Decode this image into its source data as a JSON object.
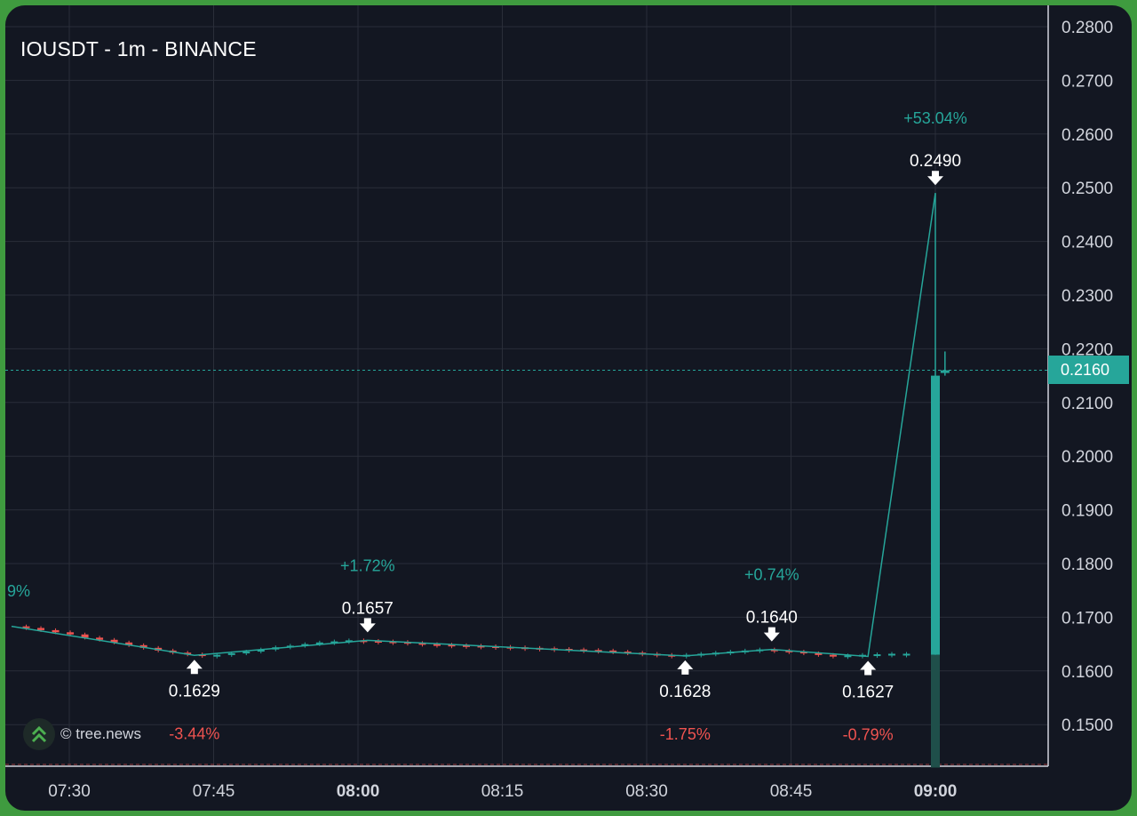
{
  "header": {
    "title": "IOUSDT - 1m - BINANCE"
  },
  "watermark": {
    "text": "© tree.news",
    "icon": "double-chevron-up-icon"
  },
  "last_price_label": "0.2160",
  "colors": {
    "up": "#26a69a",
    "down": "#ef5350",
    "background": "#131722",
    "grid": "#2a2e39",
    "axis_text": "#d1d4dc"
  },
  "chart_data": {
    "type": "candlestick",
    "title": "IOUSDT - 1m - BINANCE",
    "x_ticks": [
      {
        "label": "07:30",
        "time": "07:30",
        "bold": false
      },
      {
        "label": "07:45",
        "time": "07:45",
        "bold": false
      },
      {
        "label": "08:00",
        "time": "08:00",
        "bold": true
      },
      {
        "label": "08:15",
        "time": "08:15",
        "bold": false
      },
      {
        "label": "08:30",
        "time": "08:30",
        "bold": false
      },
      {
        "label": "08:45",
        "time": "08:45",
        "bold": false
      },
      {
        "label": "09:00",
        "time": "09:00",
        "bold": true
      }
    ],
    "y_ticks": [
      "0.2800",
      "0.2700",
      "0.2600",
      "0.2500",
      "0.2400",
      "0.2300",
      "0.2200",
      "0.2100",
      "0.2000",
      "0.1900",
      "0.1800",
      "0.1700",
      "0.1600",
      "0.1500"
    ],
    "ylim": [
      0.142,
      0.283
    ],
    "xlim": [
      "07:24",
      "09:11"
    ],
    "last_price": 0.216,
    "zigzag": [
      {
        "time": "07:24",
        "price": 0.1683
      },
      {
        "time": "07:43",
        "price": 0.1629
      },
      {
        "time": "08:01",
        "price": 0.1657
      },
      {
        "time": "08:34",
        "price": 0.1628
      },
      {
        "time": "08:43",
        "price": 0.164
      },
      {
        "time": "08:53",
        "price": 0.1627
      },
      {
        "time": "09:00",
        "price": 0.249
      }
    ],
    "pivot_labels": [
      {
        "time": "07:43",
        "price": "0.1629",
        "change": "-3.44%",
        "kind": "low"
      },
      {
        "time": "08:01",
        "price": "0.1657",
        "change": "+1.72%",
        "kind": "high"
      },
      {
        "time": "08:34",
        "price": "0.1628",
        "change": "-1.75%",
        "kind": "low"
      },
      {
        "time": "08:43",
        "price": "0.1640",
        "change": "+0.74%",
        "kind": "high"
      },
      {
        "time": "08:53",
        "price": "0.1627",
        "change": "-0.79%",
        "kind": "low"
      },
      {
        "time": "09:00",
        "price": "0.2490",
        "change": "+53.04%",
        "kind": "high"
      }
    ],
    "edge_label": {
      "time": "07:24",
      "text": "9%"
    },
    "candles": [
      {
        "time": "09:00",
        "open": 0.163,
        "high": 0.249,
        "low": 0.142,
        "close": 0.215
      },
      {
        "time": "09:01",
        "open": 0.2155,
        "high": 0.2195,
        "low": 0.215,
        "close": 0.216
      }
    ],
    "baseline_series": [
      0.1683,
      0.168,
      0.1676,
      0.1672,
      0.1668,
      0.1662,
      0.1658,
      0.1653,
      0.1648,
      0.1643,
      0.1638,
      0.1634,
      0.1631,
      0.1629,
      0.163,
      0.1633,
      0.1636,
      0.164,
      0.1644,
      0.1647,
      0.165,
      0.1653,
      0.1655,
      0.1657,
      0.1656,
      0.1655,
      0.1654,
      0.1652,
      0.165,
      0.1649,
      0.1648,
      0.1647,
      0.1646,
      0.1645,
      0.1644,
      0.1643,
      0.1642,
      0.1641,
      0.164,
      0.1639,
      0.1638,
      0.1636,
      0.1634,
      0.1632,
      0.163,
      0.1628,
      0.163,
      0.1632,
      0.1634,
      0.1636,
      0.1638,
      0.164,
      0.1638,
      0.1636,
      0.1633,
      0.163,
      0.1627,
      0.1629,
      0.163,
      0.1631,
      0.1632,
      0.1632
    ]
  }
}
